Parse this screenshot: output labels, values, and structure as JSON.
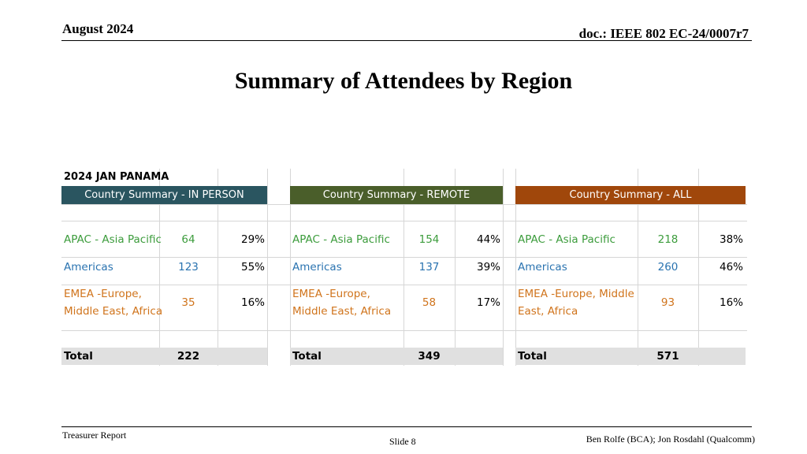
{
  "header": {
    "date": "August 2024",
    "doc": "doc.: IEEE 802 EC-24/0007r7"
  },
  "title": "Summary of Attendees by Region",
  "sheet": {
    "title": "2024 JAN PANAMA",
    "sections": [
      {
        "heading": "Country Summary - IN PERSON",
        "rows": [
          {
            "region": "APAC - Asia Pacific",
            "count": "64",
            "pct": "29%"
          },
          {
            "region": "Americas",
            "count": "123",
            "pct": "55%"
          },
          {
            "region_line1": "EMEA -Europe,",
            "region_line2": "Middle East, Africa",
            "count": "35",
            "pct": "16%"
          }
        ],
        "total_label": "Total",
        "total": "222"
      },
      {
        "heading": "Country Summary - REMOTE",
        "rows": [
          {
            "region": "APAC - Asia Pacific",
            "count": "154",
            "pct": "44%"
          },
          {
            "region": "Americas",
            "count": "137",
            "pct": "39%"
          },
          {
            "region_line1": "EMEA -Europe,",
            "region_line2": "Middle East, Africa",
            "count": "58",
            "pct": "17%"
          }
        ],
        "total_label": "Total",
        "total": "349"
      },
      {
        "heading": "Country Summary - ALL",
        "rows": [
          {
            "region": "APAC - Asia Pacific",
            "count": "218",
            "pct": "38%"
          },
          {
            "region": "Americas",
            "count": "260",
            "pct": "46%"
          },
          {
            "region_line1": "EMEA -Europe, Middle",
            "region_line2": "East, Africa",
            "count": "93",
            "pct": "16%"
          }
        ],
        "total_label": "Total",
        "total": "571"
      }
    ],
    "colors": {
      "in_person": "#2a5560",
      "remote": "#4a5e2a",
      "all": "#a0470b",
      "apac": "#3c9c3c",
      "americas": "#2a73b0",
      "emea": "#d0741c"
    }
  },
  "footer": {
    "left": "Treasurer Report",
    "slide": "Slide 8",
    "right": "Ben Rolfe (BCA);   Jon Rosdahl (Qualcomm)"
  }
}
